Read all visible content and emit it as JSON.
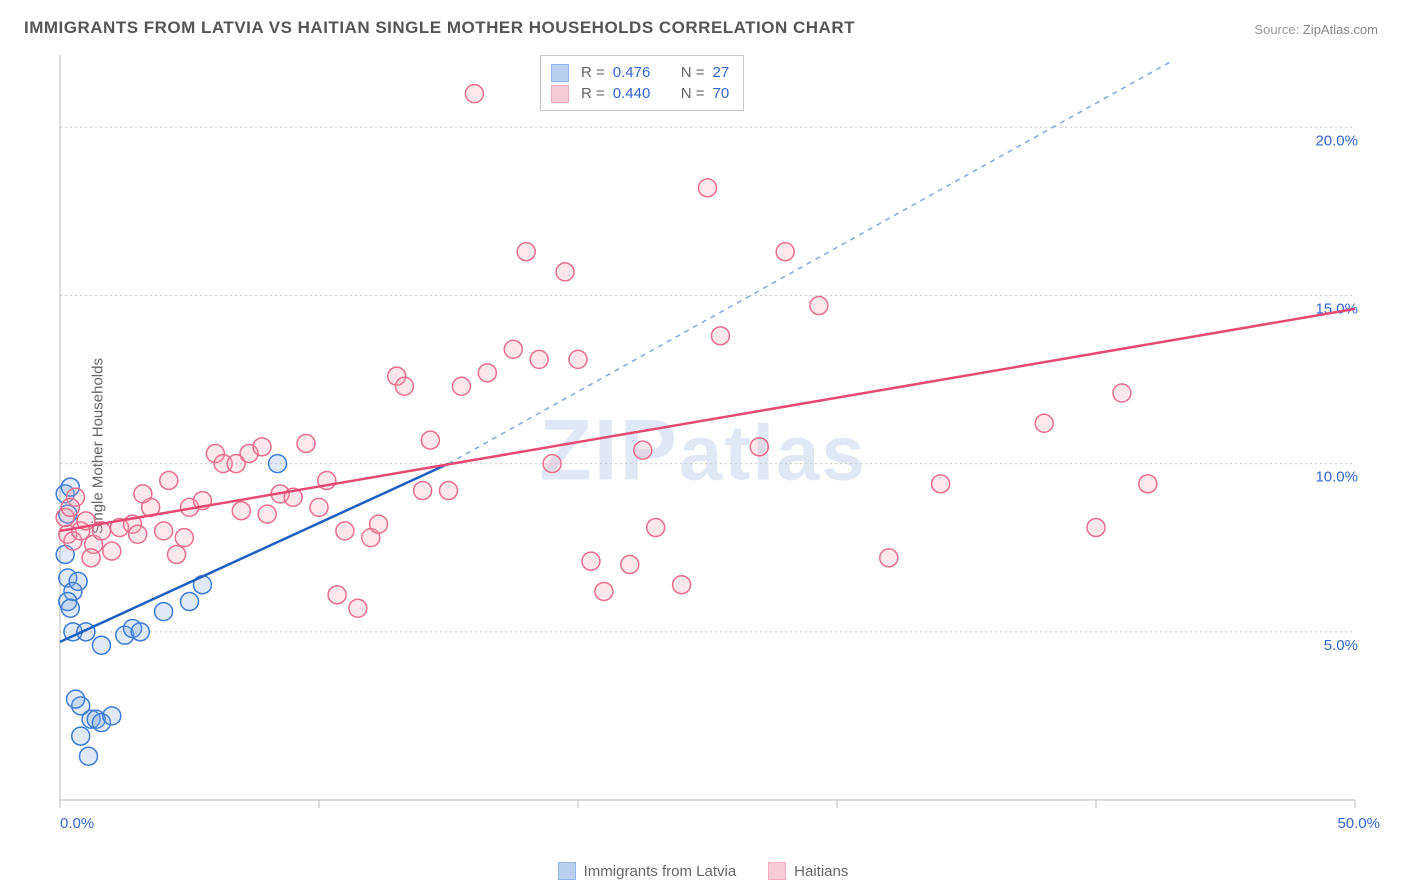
{
  "title": "IMMIGRANTS FROM LATVIA VS HAITIAN SINGLE MOTHER HOUSEHOLDS CORRELATION CHART",
  "source_label": "Source:",
  "source_value": "ZipAtlas.com",
  "y_axis_label": "Single Mother Households",
  "watermark": "ZIPatlas",
  "chart": {
    "type": "scatter",
    "background_color": "#ffffff",
    "grid_color": "#cccccc",
    "axis_color": "#bbbbbb",
    "tick_label_color": "#3366cc",
    "tick_label_fontsize": 15,
    "xlim": [
      0,
      50
    ],
    "ylim": [
      0,
      22
    ],
    "x_ticks": [
      0,
      10,
      20,
      30,
      40,
      50
    ],
    "x_tick_labels": [
      "0.0%",
      "",
      "",
      "",
      "",
      "50.0%"
    ],
    "y_grid": [
      5,
      10,
      15,
      20
    ],
    "y_tick_labels": [
      "5.0%",
      "10.0%",
      "15.0%",
      "20.0%"
    ],
    "marker_radius": 9,
    "marker_stroke_width": 1.5,
    "marker_fill_opacity": 0.25,
    "series": [
      {
        "id": "latvia",
        "label": "Immigrants from Latvia",
        "color_stroke": "#3e7cd6",
        "color_fill": "#7fa9e0",
        "trend": {
          "x1": 0,
          "y1": 4.7,
          "x2": 15,
          "y2": 10,
          "solid_color": "#1f5fbf",
          "width": 2.5
        },
        "trend_ext": {
          "x1": 15,
          "y1": 10,
          "x2": 43,
          "y2": 22,
          "color": "#7fa9e0",
          "dash": "5 5",
          "width": 1.5
        },
        "points": [
          [
            0.2,
            9.1
          ],
          [
            0.4,
            9.3
          ],
          [
            0.3,
            6.6
          ],
          [
            0.5,
            6.2
          ],
          [
            0.3,
            5.9
          ],
          [
            0.4,
            5.7
          ],
          [
            0.7,
            6.5
          ],
          [
            0.5,
            5.0
          ],
          [
            1.0,
            5.0
          ],
          [
            0.8,
            2.8
          ],
          [
            1.2,
            2.4
          ],
          [
            1.4,
            2.4
          ],
          [
            1.6,
            2.3
          ],
          [
            2.0,
            2.5
          ],
          [
            0.8,
            1.9
          ],
          [
            1.1,
            1.3
          ],
          [
            1.6,
            4.6
          ],
          [
            2.5,
            4.9
          ],
          [
            2.8,
            5.1
          ],
          [
            3.1,
            5.0
          ],
          [
            4.0,
            5.6
          ],
          [
            5.0,
            5.9
          ],
          [
            5.5,
            6.4
          ],
          [
            8.4,
            10.0
          ],
          [
            0.2,
            7.3
          ],
          [
            0.3,
            8.5
          ],
          [
            0.6,
            3.0
          ]
        ]
      },
      {
        "id": "haitians",
        "label": "Haitians",
        "color_stroke": "#e86f8d",
        "color_fill": "#f2a3b5",
        "trend": {
          "x1": 0,
          "y1": 8.0,
          "x2": 50,
          "y2": 14.6,
          "solid_color": "#e64a73",
          "width": 2.5
        },
        "points": [
          [
            0.3,
            7.9
          ],
          [
            0.5,
            7.7
          ],
          [
            0.8,
            8.0
          ],
          [
            1.0,
            8.3
          ],
          [
            1.3,
            7.6
          ],
          [
            1.6,
            8.0
          ],
          [
            2.0,
            7.4
          ],
          [
            2.3,
            8.1
          ],
          [
            2.8,
            8.2
          ],
          [
            3.0,
            7.9
          ],
          [
            3.5,
            8.7
          ],
          [
            4.0,
            8.0
          ],
          [
            4.5,
            7.3
          ],
          [
            5.0,
            8.7
          ],
          [
            5.5,
            8.9
          ],
          [
            6.0,
            10.3
          ],
          [
            6.3,
            10.0
          ],
          [
            6.8,
            10.0
          ],
          [
            7.0,
            8.6
          ],
          [
            7.3,
            10.3
          ],
          [
            7.8,
            10.5
          ],
          [
            8.0,
            8.5
          ],
          [
            8.5,
            9.1
          ],
          [
            9.0,
            9.0
          ],
          [
            9.5,
            10.6
          ],
          [
            10.0,
            8.7
          ],
          [
            10.3,
            9.5
          ],
          [
            10.7,
            6.1
          ],
          [
            11.0,
            8.0
          ],
          [
            11.5,
            5.7
          ],
          [
            12.0,
            7.8
          ],
          [
            12.3,
            8.2
          ],
          [
            13.0,
            12.6
          ],
          [
            13.3,
            12.3
          ],
          [
            14.0,
            9.2
          ],
          [
            14.3,
            10.7
          ],
          [
            15.0,
            9.2
          ],
          [
            15.5,
            12.3
          ],
          [
            16.0,
            21.0
          ],
          [
            16.5,
            12.7
          ],
          [
            17.5,
            13.4
          ],
          [
            18.0,
            16.3
          ],
          [
            18.5,
            13.1
          ],
          [
            19.0,
            10.0
          ],
          [
            19.5,
            15.7
          ],
          [
            20.0,
            13.1
          ],
          [
            20.5,
            7.1
          ],
          [
            21.0,
            6.2
          ],
          [
            22.0,
            7.0
          ],
          [
            22.5,
            10.4
          ],
          [
            23.0,
            8.1
          ],
          [
            24.0,
            6.4
          ],
          [
            25.0,
            18.2
          ],
          [
            25.5,
            13.8
          ],
          [
            27.0,
            10.5
          ],
          [
            28.0,
            16.3
          ],
          [
            29.3,
            14.7
          ],
          [
            32.0,
            7.2
          ],
          [
            34.0,
            9.4
          ],
          [
            38.0,
            11.2
          ],
          [
            40.0,
            8.1
          ],
          [
            41.0,
            12.1
          ],
          [
            42.0,
            9.4
          ],
          [
            3.2,
            9.1
          ],
          [
            4.2,
            9.5
          ],
          [
            4.8,
            7.8
          ],
          [
            0.2,
            8.4
          ],
          [
            0.6,
            9.0
          ],
          [
            1.2,
            7.2
          ],
          [
            0.4,
            8.7
          ]
        ]
      }
    ]
  },
  "top_legend": {
    "rows": [
      {
        "series": "latvia",
        "R": "0.476",
        "N": "27"
      },
      {
        "series": "haitians",
        "R": "0.440",
        "N": "70"
      }
    ],
    "labels": {
      "R": "R  =",
      "N": "N  ="
    }
  },
  "bottom_legend": {
    "items": [
      {
        "series": "latvia",
        "label": "Immigrants from Latvia"
      },
      {
        "series": "haitians",
        "label": "Haitians"
      }
    ]
  }
}
